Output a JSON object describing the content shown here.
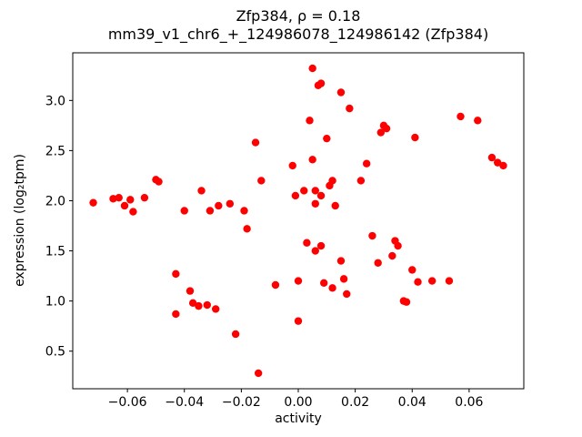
{
  "chart_data": {
    "type": "scatter",
    "title": "Zfp384, ρ = 0.18",
    "subtitle": "mm39_v1_chr6_+_124986078_124986142 (Zfp384)",
    "xlabel": "activity",
    "ylabel": "expression (log₂tpm)",
    "xlim": [
      -0.0792,
      0.0792
    ],
    "ylim": [
      0.125,
      3.475
    ],
    "xticks": [
      -0.06,
      -0.04,
      -0.02,
      0.0,
      0.02,
      0.04,
      0.06
    ],
    "yticks": [
      0.5,
      1.0,
      1.5,
      2.0,
      2.5,
      3.0
    ],
    "marker_color": "#ff0000",
    "axis_color": "#000000",
    "legend": "none",
    "grid": false,
    "points": [
      [
        -0.072,
        1.98
      ],
      [
        -0.065,
        2.02
      ],
      [
        -0.063,
        2.03
      ],
      [
        -0.061,
        1.95
      ],
      [
        -0.059,
        2.01
      ],
      [
        -0.058,
        1.89
      ],
      [
        -0.054,
        2.03
      ],
      [
        -0.05,
        2.21
      ],
      [
        -0.049,
        2.19
      ],
      [
        -0.043,
        1.27
      ],
      [
        -0.043,
        0.87
      ],
      [
        -0.04,
        1.9
      ],
      [
        -0.038,
        1.1
      ],
      [
        -0.037,
        0.98
      ],
      [
        -0.035,
        0.95
      ],
      [
        -0.034,
        2.1
      ],
      [
        -0.032,
        0.96
      ],
      [
        -0.031,
        1.9
      ],
      [
        -0.029,
        0.92
      ],
      [
        -0.028,
        1.95
      ],
      [
        -0.024,
        1.97
      ],
      [
        -0.022,
        0.67
      ],
      [
        -0.019,
        1.9
      ],
      [
        -0.018,
        1.72
      ],
      [
        -0.015,
        2.58
      ],
      [
        -0.014,
        0.28
      ],
      [
        -0.013,
        2.2
      ],
      [
        -0.008,
        1.16
      ],
      [
        -0.002,
        2.35
      ],
      [
        -0.001,
        2.05
      ],
      [
        0.0,
        1.2
      ],
      [
        0.0,
        0.8
      ],
      [
        0.002,
        2.1
      ],
      [
        0.003,
        1.58
      ],
      [
        0.004,
        2.8
      ],
      [
        0.005,
        3.32
      ],
      [
        0.005,
        2.41
      ],
      [
        0.006,
        2.1
      ],
      [
        0.006,
        1.97
      ],
      [
        0.006,
        1.5
      ],
      [
        0.007,
        3.15
      ],
      [
        0.008,
        3.17
      ],
      [
        0.008,
        2.05
      ],
      [
        0.008,
        1.55
      ],
      [
        0.009,
        1.18
      ],
      [
        0.01,
        2.62
      ],
      [
        0.011,
        2.15
      ],
      [
        0.012,
        2.2
      ],
      [
        0.012,
        1.13
      ],
      [
        0.013,
        1.95
      ],
      [
        0.015,
        3.08
      ],
      [
        0.015,
        1.4
      ],
      [
        0.016,
        1.22
      ],
      [
        0.017,
        1.07
      ],
      [
        0.018,
        2.92
      ],
      [
        0.022,
        2.2
      ],
      [
        0.024,
        2.37
      ],
      [
        0.026,
        1.65
      ],
      [
        0.028,
        1.38
      ],
      [
        0.029,
        2.68
      ],
      [
        0.03,
        2.75
      ],
      [
        0.031,
        2.72
      ],
      [
        0.033,
        1.45
      ],
      [
        0.034,
        1.6
      ],
      [
        0.035,
        1.55
      ],
      [
        0.037,
        1.0
      ],
      [
        0.038,
        0.99
      ],
      [
        0.04,
        1.31
      ],
      [
        0.041,
        2.63
      ],
      [
        0.042,
        1.19
      ],
      [
        0.047,
        1.2
      ],
      [
        0.053,
        1.2
      ],
      [
        0.057,
        2.84
      ],
      [
        0.063,
        2.8
      ],
      [
        0.068,
        2.43
      ],
      [
        0.07,
        2.38
      ],
      [
        0.072,
        2.35
      ]
    ]
  }
}
